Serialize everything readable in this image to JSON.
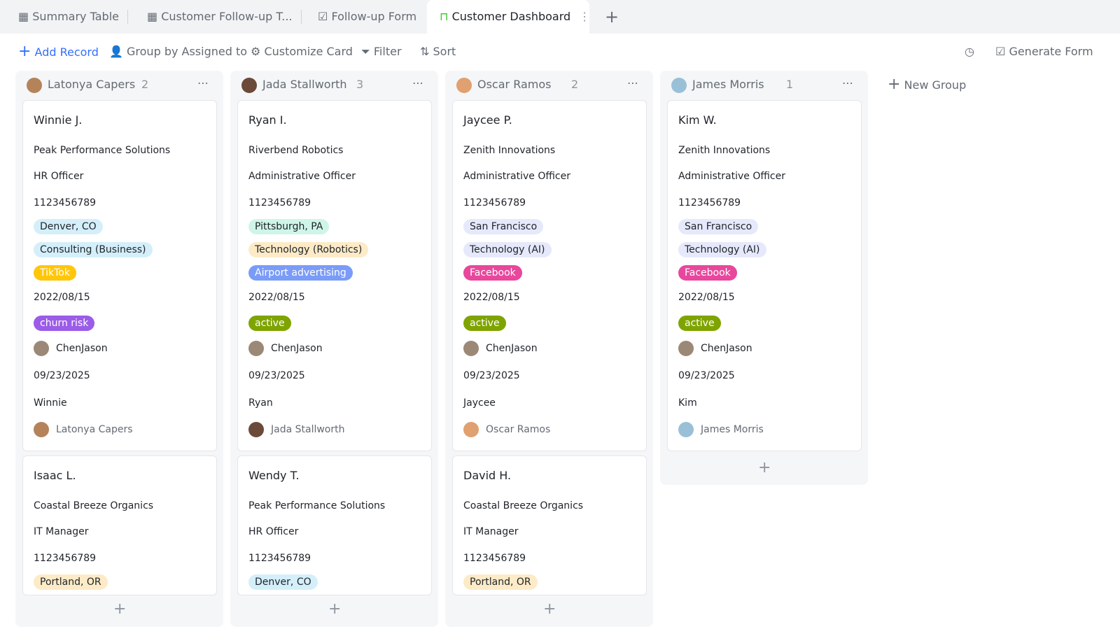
{
  "tabs": [
    "Summary Table",
    "Customer Follow-up T...",
    "Follow-up Form",
    "Customer Dashboard"
  ],
  "toolbar": {
    "add_record": "Add Record",
    "group_by": "Group by Assigned to",
    "customize": "Customize Card",
    "filter": "Filter",
    "sort": "Sort",
    "generate_form": "Generate Form"
  },
  "new_group": "New Group",
  "groups": [
    {
      "name": "Latonya Capers",
      "count": 2,
      "cards": [
        {
          "name": "Winnie J.",
          "company": "Peak Performance Solutions",
          "role": "HR Officer",
          "phone": "1123456789",
          "location": {
            "text": "Denver, CO",
            "color": "#d4effa",
            "text_color": "#1f2329"
          },
          "industry": {
            "text": "Consulting (Business)",
            "color": "#d4effa",
            "text_color": "#1f2329"
          },
          "channel": {
            "text": "TikTok",
            "color": "#ffc60a",
            "text_color": "#ffffff"
          },
          "date": "2022/08/15",
          "status": {
            "text": "churn risk",
            "color": "#9b5ce8",
            "text_color": "#ffffff"
          },
          "owner": "ChenJason",
          "followup_date": "09/23/2025",
          "first_name": "Winnie",
          "assignee": "Latonya Capers"
        },
        {
          "name": "Isaac L.",
          "company": "Coastal Breeze Organics",
          "role": "IT Manager",
          "phone": "1123456789",
          "location": {
            "text": "Portland, OR",
            "color": "#fdebc7",
            "text_color": "#1f2329"
          }
        }
      ]
    },
    {
      "name": "Jada Stallworth",
      "count": 3,
      "cards": [
        {
          "name": "Ryan I.",
          "company": "Riverbend Robotics",
          "role": "Administrative Officer",
          "phone": "1123456789",
          "location": {
            "text": "Pittsburgh, PA",
            "color": "#cff5e8",
            "text_color": "#1f2329"
          },
          "industry": {
            "text": "Technology (Robotics)",
            "color": "#fdebc7",
            "text_color": "#1f2329"
          },
          "channel": {
            "text": "Airport advertising",
            "color": "#7a9cf8",
            "text_color": "#ffffff"
          },
          "date": "2022/08/15",
          "status": {
            "text": "active",
            "color": "#7fa400",
            "text_color": "#ffffff"
          },
          "owner": "ChenJason",
          "followup_date": "09/23/2025",
          "first_name": "Ryan",
          "assignee": "Jada Stallworth"
        },
        {
          "name": "Wendy T.",
          "company": "Peak Performance Solutions",
          "role": "HR Officer",
          "phone": "1123456789",
          "location": {
            "text": "Denver, CO",
            "color": "#d4effa",
            "text_color": "#1f2329"
          }
        }
      ]
    },
    {
      "name": "Oscar Ramos",
      "count": 2,
      "cards": [
        {
          "name": "Jaycee P.",
          "company": "Zenith Innovations",
          "role": "Administrative Officer",
          "phone": "1123456789",
          "location": {
            "text": "San Francisco",
            "color": "#e6e9fb",
            "text_color": "#1f2329"
          },
          "industry": {
            "text": "Technology (AI)",
            "color": "#e6e9fb",
            "text_color": "#1f2329"
          },
          "channel": {
            "text": "Facebook",
            "color": "#e8479c",
            "text_color": "#ffffff"
          },
          "date": "2022/08/15",
          "status": {
            "text": "active",
            "color": "#7fa400",
            "text_color": "#ffffff"
          },
          "owner": "ChenJason",
          "followup_date": "09/23/2025",
          "first_name": "Jaycee",
          "assignee": "Oscar Ramos"
        },
        {
          "name": "David H.",
          "company": "Coastal Breeze Organics",
          "role": "IT Manager",
          "phone": "1123456789",
          "location": {
            "text": "Portland, OR",
            "color": "#fdebc7",
            "text_color": "#1f2329"
          }
        }
      ]
    },
    {
      "name": "James Morris",
      "count": 1,
      "cards": [
        {
          "name": "Kim W.",
          "company": "Zenith Innovations",
          "role": "Administrative Officer",
          "phone": "1123456789",
          "location": {
            "text": "San Francisco",
            "color": "#e6e9fb",
            "text_color": "#1f2329"
          },
          "industry": {
            "text": "Technology (AI)",
            "color": "#e6e9fb",
            "text_color": "#1f2329"
          },
          "channel": {
            "text": "Facebook",
            "color": "#e8479c",
            "text_color": "#ffffff"
          },
          "date": "2022/08/15",
          "status": {
            "text": "active",
            "color": "#7fa400",
            "text_color": "#ffffff"
          },
          "owner": "ChenJason",
          "followup_date": "09/23/2025",
          "first_name": "Kim",
          "assignee": "James Morris"
        }
      ]
    }
  ]
}
